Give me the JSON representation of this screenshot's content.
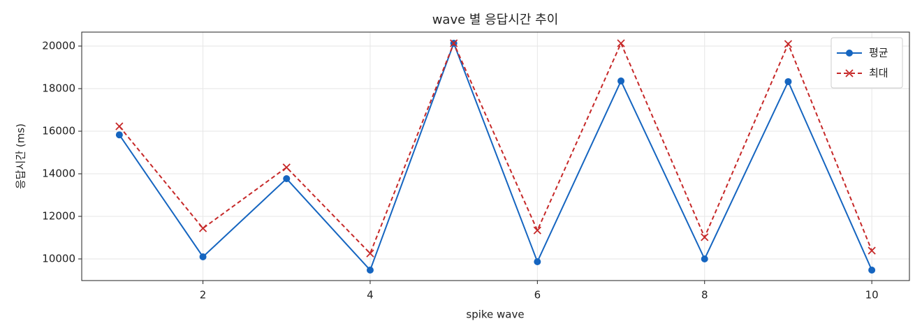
{
  "chart_data": {
    "type": "line",
    "title": "wave 별 응답시간 추이",
    "x_label": "spike wave",
    "y_label": "응답시간 (ms)",
    "x": [
      1,
      2,
      3,
      4,
      5,
      6,
      7,
      8,
      9,
      10
    ],
    "series": [
      {
        "name": "평균",
        "color": "#1565c0",
        "marker": "o",
        "linestyle": "solid",
        "values": [
          15830,
          10100,
          13770,
          9475,
          20130,
          9870,
          18360,
          10000,
          18330,
          9475
        ]
      },
      {
        "name": "최대",
        "color": "#c62828",
        "marker": "x",
        "linestyle": "dashed",
        "values": [
          16230,
          11440,
          14300,
          10260,
          20130,
          11340,
          20130,
          11020,
          20100,
          10390
        ]
      }
    ],
    "xlim": [
      0.55,
      10.45
    ],
    "ylim": [
      8984,
      20656
    ],
    "xticks": [
      2,
      4,
      6,
      8,
      10
    ],
    "yticks": [
      10000,
      12000,
      14000,
      16000,
      18000,
      20000
    ],
    "grid": true,
    "legend": "upper right"
  }
}
